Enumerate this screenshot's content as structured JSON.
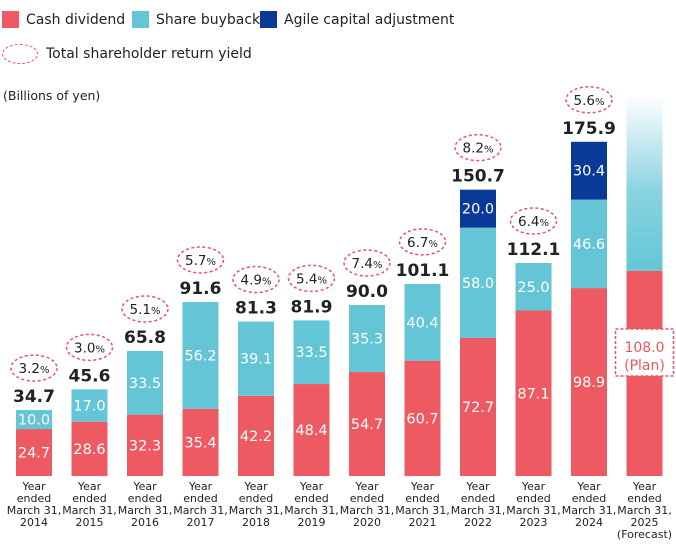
{
  "legend": {
    "cash": "Cash dividend",
    "buyback": "Share buyback",
    "agile": "Agile capital adjustment",
    "yield": "Total shareholder return yield"
  },
  "unit_label": "(Billions of yen)",
  "colors": {
    "cash": "#ed5a62",
    "buyback": "#63c5d6",
    "agile": "#0a3a97",
    "yield_ring": "#e8565e"
  },
  "chart_data": {
    "type": "bar",
    "stacked": true,
    "ylabel": "(Billions of yen)",
    "categories": [
      [
        "Year",
        "ended",
        "March 31,",
        "2014"
      ],
      [
        "Year",
        "ended",
        "March 31,",
        "2015"
      ],
      [
        "Year",
        "ended",
        "March 31,",
        "2016"
      ],
      [
        "Year",
        "ended",
        "March 31,",
        "2017"
      ],
      [
        "Year",
        "ended",
        "March 31,",
        "2018"
      ],
      [
        "Year",
        "ended",
        "March 31,",
        "2019"
      ],
      [
        "Year",
        "ended",
        "March 31,",
        "2020"
      ],
      [
        "Year",
        "ended",
        "March 31,",
        "2021"
      ],
      [
        "Year",
        "ended",
        "March 31,",
        "2022"
      ],
      [
        "Year",
        "ended",
        "March 31,",
        "2023"
      ],
      [
        "Year",
        "ended",
        "March 31,",
        "2024"
      ],
      [
        "Year",
        "ended",
        "March 31,",
        "2025",
        "(Forecast)"
      ]
    ],
    "series": [
      {
        "name": "Cash dividend",
        "values": [
          24.7,
          28.6,
          32.3,
          35.4,
          42.2,
          48.4,
          54.7,
          60.7,
          72.7,
          87.1,
          98.9,
          108.0
        ]
      },
      {
        "name": "Share buyback",
        "values": [
          10.0,
          17.0,
          33.5,
          56.2,
          39.1,
          33.5,
          35.3,
          40.4,
          58.0,
          25.0,
          46.6,
          null
        ]
      },
      {
        "name": "Agile capital adjustment",
        "values": [
          null,
          null,
          null,
          null,
          null,
          null,
          null,
          null,
          20.0,
          null,
          30.4,
          null
        ]
      }
    ],
    "totals": [
      "34.7",
      "45.6",
      "65.8",
      "91.6",
      "81.3",
      "81.9",
      "90.0",
      "101.1",
      "150.7",
      "112.1",
      "175.9",
      ""
    ],
    "yields": [
      [
        "3.2",
        "%"
      ],
      [
        "3.0",
        "%"
      ],
      [
        "5.1",
        "%"
      ],
      [
        "5.7",
        "%"
      ],
      [
        "4.9",
        "%"
      ],
      [
        "5.4",
        "%"
      ],
      [
        "7.4",
        "%"
      ],
      [
        "6.7",
        "%"
      ],
      [
        "8.2",
        "%"
      ],
      [
        "6.4",
        "%"
      ],
      [
        "5.6",
        "%"
      ],
      null
    ],
    "forecast_label": [
      "108.0",
      "(Plan)"
    ],
    "forecast_buyback_faded": true
  }
}
